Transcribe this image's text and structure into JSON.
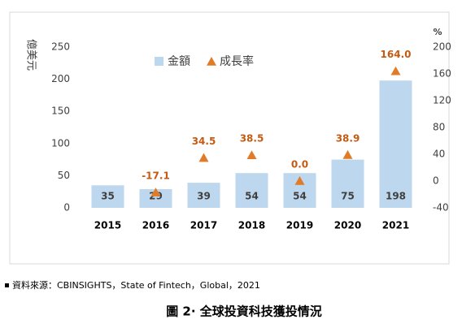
{
  "chart_data": {
    "type": "bar",
    "y_label": "億美元",
    "y2_label": "%",
    "categories": [
      "2015",
      "2016",
      "2017",
      "2018",
      "2019",
      "2020",
      "2021"
    ],
    "series": [
      {
        "name": "金額",
        "type": "bar",
        "color": "#bdd7ee",
        "values": [
          35,
          29,
          39,
          54,
          54,
          75,
          198
        ]
      },
      {
        "name": "成長率",
        "type": "scatter",
        "axis": "y2",
        "marker": "triangle",
        "color": "#e07b28",
        "label_color": "#c55a11",
        "values": [
          null,
          -17.1,
          34.5,
          38.5,
          0.0,
          38.9,
          164.0
        ],
        "value_labels": [
          null,
          "-17.1",
          "34.5",
          "38.5",
          "0.0",
          "38.9",
          "164.0"
        ]
      }
    ],
    "ylim": [
      0,
      250
    ],
    "yticks": [
      0,
      50,
      100,
      150,
      200,
      250
    ],
    "y2lim": [
      -40,
      200
    ],
    "y2ticks": [
      -40,
      0,
      40,
      80,
      120,
      160,
      200
    ],
    "grid": false,
    "legend": "top-left"
  },
  "source": "資料來源：CBINSIGHTS，State of Fintech，Global，2021",
  "caption": "圖 2· 全球投資科技獲投情況"
}
